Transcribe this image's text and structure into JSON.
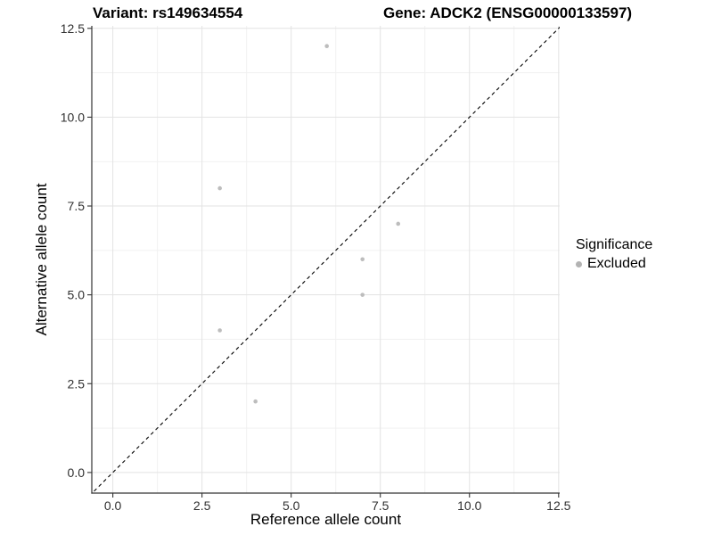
{
  "chart_data": {
    "type": "scatter",
    "title_left": "Variant: rs149634554",
    "title_right": "Gene: ADCK2 (ENSG00000133597)",
    "xlabel": "Reference allele count",
    "ylabel": "Alternative allele count",
    "series": [
      {
        "name": "Excluded",
        "color": "#bdbdbd",
        "points": [
          [
            6,
            12
          ],
          [
            3,
            8
          ],
          [
            8,
            7
          ],
          [
            7,
            6
          ],
          [
            7,
            5
          ],
          [
            3,
            4
          ],
          [
            4,
            2
          ]
        ]
      }
    ],
    "identity_line": {
      "style": "dashed",
      "color": "#000000",
      "equation": "y = x"
    },
    "xlim": [
      -0.59,
      12.53
    ],
    "ylim": [
      -0.58,
      12.57
    ],
    "xticks": [
      0,
      2.5,
      5,
      7.5,
      10,
      12.5
    ],
    "xtick_labels": [
      "0.0",
      "2.5",
      "5.0",
      "7.5",
      "10.0",
      "12.5"
    ],
    "yticks": [
      0,
      2.5,
      5,
      7.5,
      10,
      12.5
    ],
    "ytick_labels": [
      "0.0",
      "2.5",
      "5.0",
      "7.5",
      "10.0",
      "12.5"
    ],
    "x_minor": [
      1.25,
      3.75,
      6.25,
      8.75,
      11.25
    ],
    "y_minor": [
      1.25,
      3.75,
      6.25,
      8.75,
      11.25
    ],
    "grid": {
      "visible": true,
      "major_color": "#e3e3e3",
      "minor_color": "#f1f1f1"
    },
    "axis_color": "#333333",
    "tick_label_color": "#303030",
    "point_radius": 2.3,
    "legend": {
      "title": "Significance",
      "position": "right",
      "items": [
        {
          "label": "Excluded",
          "color": "#b3b3b3"
        }
      ]
    }
  }
}
